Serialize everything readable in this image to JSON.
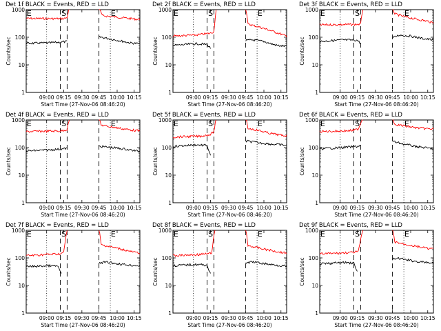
{
  "chart_data": [
    {
      "type": "line",
      "title": "Det 1f BLACK = Events, RED = LLD",
      "xlabel": "Start Time (27-Nov-06 08:46:20)",
      "ylabel": "Counts/sec",
      "xticks": [
        "09:00",
        "09:15",
        "09:30",
        "09:45",
        "10:00",
        "10:15"
      ],
      "yticks": [
        "1",
        "10",
        "100",
        "1000"
      ],
      "ylim": [
        1,
        1000
      ],
      "yscale": "log",
      "markers": [
        "E",
        "S",
        "E"
      ],
      "series": [
        {
          "color": "#ff0000",
          "segments": [
            {
              "x": [
                0.0,
                0.33,
                0.36,
                0.38
              ],
              "y": [
                480,
                470,
                520,
                1200
              ]
            },
            {
              "x": [
                0.64,
                0.67,
                0.72,
                0.8,
                0.9,
                1.0
              ],
              "y": [
                1200,
                600,
                580,
                540,
                480,
                440
              ]
            }
          ]
        },
        {
          "color": "#000000",
          "segments": [
            {
              "x": [
                0.0,
                0.2,
                0.33,
                0.36
              ],
              "y": [
                60,
                62,
                68,
                70
              ]
            },
            {
              "x": [
                0.64,
                0.66,
                0.72,
                0.82,
                0.92,
                1.0
              ],
              "y": [
                100,
                100,
                90,
                75,
                62,
                58
              ]
            }
          ]
        }
      ]
    },
    {
      "type": "line",
      "title": "Det 2f BLACK = Events, RED = LLD",
      "xlabel": "Start Time (27-Nov-06 08:46:20)",
      "ylabel": "Counts/sec",
      "xticks": [
        "09:00",
        "09:15",
        "09:30",
        "09:45",
        "10:00",
        "10:15"
      ],
      "yticks": [
        "1",
        "10",
        "100",
        "1000"
      ],
      "ylim": [
        1,
        1000
      ],
      "yscale": "log",
      "markers": [
        "E",
        "S",
        "E"
      ],
      "series": [
        {
          "color": "#ff0000",
          "segments": [
            {
              "x": [
                0.0,
                0.2,
                0.33,
                0.36,
                0.38
              ],
              "y": [
                110,
                120,
                140,
                160,
                1200
              ]
            },
            {
              "x": [
                0.64,
                0.66,
                0.75,
                0.85,
                0.95,
                1.0
              ],
              "y": [
                1200,
                300,
                240,
                180,
                130,
                110
              ]
            }
          ]
        },
        {
          "color": "#000000",
          "segments": [
            {
              "x": [
                0.0,
                0.2,
                0.3,
                0.33
              ],
              "y": [
                50,
                58,
                55,
                40
              ]
            },
            {
              "x": [
                0.64,
                0.7,
                0.8,
                0.88,
                0.95,
                1.0
              ],
              "y": [
                75,
                80,
                70,
                55,
                48,
                48
              ]
            }
          ]
        }
      ]
    },
    {
      "type": "line",
      "title": "Det 3f BLACK = Events, RED = LLD",
      "xlabel": "Start Time (27-Nov-06 08:46:20)",
      "ylabel": "Counts/sec",
      "xticks": [
        "09:00",
        "09:15",
        "09:30",
        "09:45",
        "10:00",
        "10:15"
      ],
      "yticks": [
        "1",
        "10",
        "100",
        "1000"
      ],
      "ylim": [
        1,
        1000
      ],
      "yscale": "log",
      "markers": [
        "E",
        "S",
        "E"
      ],
      "series": [
        {
          "color": "#ff0000",
          "segments": [
            {
              "x": [
                0.0,
                0.3,
                0.36,
                0.38
              ],
              "y": [
                280,
                290,
                300,
                1200
              ]
            },
            {
              "x": [
                0.64,
                0.66,
                0.75,
                0.85,
                0.95,
                1.0
              ],
              "y": [
                1200,
                700,
                550,
                450,
                380,
                330
              ]
            }
          ]
        },
        {
          "color": "#000000",
          "segments": [
            {
              "x": [
                0.0,
                0.2,
                0.33,
                0.36
              ],
              "y": [
                70,
                80,
                78,
                60
              ]
            },
            {
              "x": [
                0.64,
                0.7,
                0.8,
                0.9,
                1.0
              ],
              "y": [
                95,
                120,
                110,
                90,
                80
              ]
            }
          ]
        }
      ]
    },
    {
      "type": "line",
      "title": "Det 4f BLACK = Events, RED = LLD",
      "xlabel": "Start Time (27-Nov-06 08:46:20)",
      "ylabel": "Counts/sec",
      "xticks": [
        "09:00",
        "09:15",
        "09:30",
        "09:45",
        "10:00",
        "10:15"
      ],
      "yticks": [
        "1",
        "10",
        "100",
        "1000"
      ],
      "ylim": [
        1,
        1000
      ],
      "yscale": "log",
      "markers": [
        "E",
        "S",
        "E"
      ],
      "series": [
        {
          "color": "#ff0000",
          "segments": [
            {
              "x": [
                0.0,
                0.3,
                0.36,
                0.38
              ],
              "y": [
                380,
                400,
                450,
                1200
              ]
            },
            {
              "x": [
                0.64,
                0.66,
                0.75,
                0.85,
                0.95,
                1.0
              ],
              "y": [
                1200,
                650,
                560,
                480,
                420,
                400
              ]
            }
          ]
        },
        {
          "color": "#000000",
          "segments": [
            {
              "x": [
                0.0,
                0.2,
                0.33,
                0.36
              ],
              "y": [
                75,
                82,
                90,
                95
              ]
            },
            {
              "x": [
                0.64,
                0.66,
                0.75,
                0.85,
                0.95,
                1.0
              ],
              "y": [
                110,
                110,
                100,
                90,
                78,
                72
              ]
            }
          ]
        }
      ]
    },
    {
      "type": "line",
      "title": "Det 5f BLACK = Events, RED = LLD",
      "xlabel": "Start Time (27-Nov-06 08:46:20)",
      "ylabel": "Counts/sec",
      "xticks": [
        "09:00",
        "09:15",
        "09:30",
        "09:45",
        "10:00",
        "10:15"
      ],
      "yticks": [
        "1",
        "10",
        "100",
        "1000"
      ],
      "ylim": [
        1,
        1000
      ],
      "yscale": "log",
      "markers": [
        "E",
        "S",
        "E"
      ],
      "series": [
        {
          "color": "#ff0000",
          "segments": [
            {
              "x": [
                0.0,
                0.25,
                0.33,
                0.36,
                0.38
              ],
              "y": [
                240,
                260,
                300,
                380,
                1200
              ]
            },
            {
              "x": [
                0.64,
                0.66,
                0.75,
                0.85,
                0.95,
                1.0
              ],
              "y": [
                1200,
                500,
                420,
                330,
                280,
                270
              ]
            }
          ]
        },
        {
          "color": "#000000",
          "segments": [
            {
              "x": [
                0.0,
                0.2,
                0.3,
                0.33
              ],
              "y": [
                110,
                125,
                120,
                50
              ]
            },
            {
              "x": [
                0.64,
                0.66,
                0.75,
                0.85,
                0.95,
                1.0
              ],
              "y": [
                170,
                170,
                150,
                135,
                125,
                120
              ]
            }
          ]
        }
      ]
    },
    {
      "type": "line",
      "title": "Det 6f BLACK = Events, RED = LLD",
      "xlabel": "Start Time (27-Nov-06 08:46:20)",
      "ylabel": "Counts/sec",
      "xticks": [
        "09:00",
        "09:15",
        "09:30",
        "09:45",
        "10:00",
        "10:15"
      ],
      "yticks": [
        "1",
        "10",
        "100",
        "1000"
      ],
      "ylim": [
        1,
        1000
      ],
      "yscale": "log",
      "markers": [
        "E",
        "S",
        "E"
      ],
      "series": [
        {
          "color": "#ff0000",
          "segments": [
            {
              "x": [
                0.0,
                0.2,
                0.3,
                0.34,
                0.38
              ],
              "y": [
                380,
                400,
                420,
                480,
                1200
              ]
            },
            {
              "x": [
                0.64,
                0.66,
                0.75,
                0.85,
                0.95,
                1.0
              ],
              "y": [
                1200,
                700,
                600,
                520,
                480,
                470
              ]
            }
          ]
        },
        {
          "color": "#000000",
          "segments": [
            {
              "x": [
                0.0,
                0.2,
                0.33,
                0.36
              ],
              "y": [
                90,
                100,
                110,
                120
              ]
            },
            {
              "x": [
                0.64,
                0.66,
                0.75,
                0.85,
                0.95,
                1.0
              ],
              "y": [
                170,
                160,
                130,
                110,
                95,
                90
              ]
            }
          ]
        }
      ]
    },
    {
      "type": "line",
      "title": "Det 7f BLACK = Events, RED = LLD",
      "xlabel": "Start Time (27-Nov-06 08:46:20)",
      "ylabel": "Counts/sec",
      "xticks": [
        "09:00",
        "09:15",
        "09:30",
        "09:45",
        "10:00",
        "10:15"
      ],
      "yticks": [
        "1",
        "10",
        "100",
        "1000"
      ],
      "ylim": [
        1,
        1000
      ],
      "yscale": "log",
      "markers": [
        "E",
        "S",
        "E"
      ],
      "series": [
        {
          "color": "#ff0000",
          "segments": [
            {
              "x": [
                0.0,
                0.2,
                0.3,
                0.33,
                0.36
              ],
              "y": [
                120,
                135,
                140,
                160,
                1200
              ]
            },
            {
              "x": [
                0.64,
                0.66,
                0.75,
                0.85,
                0.95,
                1.0
              ],
              "y": [
                1200,
                300,
                250,
                200,
                160,
                150
              ]
            }
          ]
        },
        {
          "color": "#000000",
          "segments": [
            {
              "x": [
                0.0,
                0.2,
                0.28,
                0.31
              ],
              "y": [
                48,
                52,
                50,
                25
              ]
            },
            {
              "x": [
                0.64,
                0.7,
                0.8,
                0.9,
                1.0
              ],
              "y": [
                65,
                70,
                62,
                55,
                52
              ]
            }
          ]
        }
      ]
    },
    {
      "type": "line",
      "title": "Det 8f BLACK = Events, RED = LLD",
      "xlabel": "Start Time (27-Nov-06 08:46:20)",
      "ylabel": "Counts/sec",
      "xticks": [
        "09:00",
        "09:15",
        "09:30",
        "09:45",
        "10:00",
        "10:15"
      ],
      "yticks": [
        "1",
        "10",
        "100",
        "1000"
      ],
      "ylim": [
        1,
        1000
      ],
      "yscale": "log",
      "markers": [
        "E",
        "S",
        "E"
      ],
      "series": [
        {
          "color": "#ff0000",
          "segments": [
            {
              "x": [
                0.0,
                0.2,
                0.3,
                0.34,
                0.37
              ],
              "y": [
                120,
                130,
                140,
                150,
                1200
              ]
            },
            {
              "x": [
                0.64,
                0.66,
                0.75,
                0.85,
                0.95,
                1.0
              ],
              "y": [
                1200,
                280,
                230,
                190,
                160,
                150
              ]
            }
          ]
        },
        {
          "color": "#000000",
          "segments": [
            {
              "x": [
                0.0,
                0.2,
                0.3,
                0.33
              ],
              "y": [
                52,
                58,
                55,
                25
              ]
            },
            {
              "x": [
                0.64,
                0.7,
                0.8,
                0.9,
                1.0
              ],
              "y": [
                65,
                72,
                62,
                55,
                50
              ]
            }
          ]
        }
      ]
    },
    {
      "type": "line",
      "title": "Det 9f BLACK = Events, RED = LLD",
      "xlabel": "Start Time (27-Nov-06 08:46:20)",
      "ylabel": "Counts/sec",
      "xticks": [
        "09:00",
        "09:15",
        "09:30",
        "09:45",
        "10:00",
        "10:15"
      ],
      "yticks": [
        "1",
        "10",
        "100",
        "1000"
      ],
      "ylim": [
        1,
        1000
      ],
      "yscale": "log",
      "markers": [
        "E",
        "S",
        "E"
      ],
      "series": [
        {
          "color": "#ff0000",
          "segments": [
            {
              "x": [
                0.0,
                0.2,
                0.3,
                0.34,
                0.38
              ],
              "y": [
                140,
                150,
                160,
                170,
                1200
              ]
            },
            {
              "x": [
                0.64,
                0.66,
                0.75,
                0.85,
                0.95,
                1.0
              ],
              "y": [
                1200,
                380,
                310,
                260,
                220,
                210
              ]
            }
          ]
        },
        {
          "color": "#000000",
          "segments": [
            {
              "x": [
                0.0,
                0.2,
                0.3,
                0.33
              ],
              "y": [
                60,
                68,
                65,
                30
              ]
            },
            {
              "x": [
                0.64,
                0.7,
                0.8,
                0.9,
                1.0
              ],
              "y": [
                90,
                95,
                80,
                70,
                65
              ]
            }
          ]
        }
      ]
    }
  ]
}
